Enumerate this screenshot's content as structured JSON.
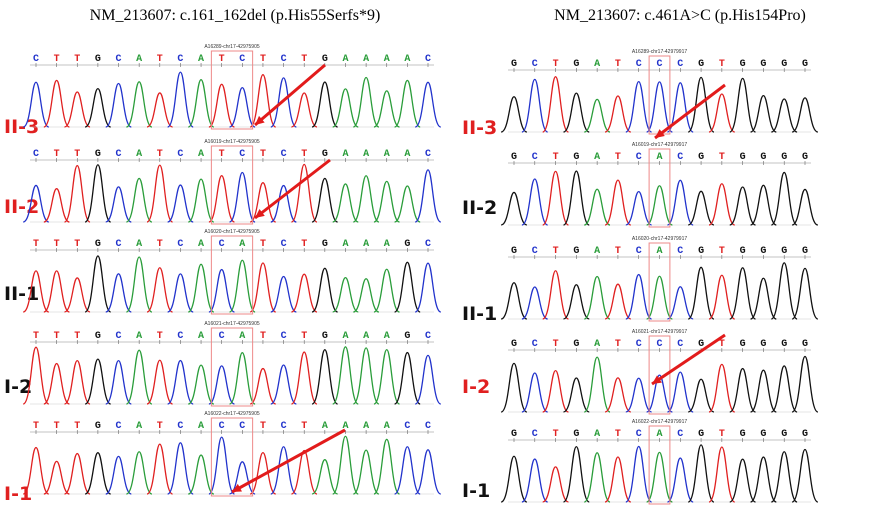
{
  "panels": [
    {
      "title": "NM_213607: c.161_162del (p.His55Serfs*9)",
      "tracks": [
        {
          "label": "II-3",
          "label_color": "#e02020",
          "header": "A16289-chr17-42975905",
          "bases": [
            "C",
            "T",
            "T",
            "G",
            "C",
            "A",
            "T",
            "C",
            "A",
            "T",
            "C",
            "T",
            "C",
            "T",
            "G",
            "A",
            "A",
            "A",
            "A",
            "C"
          ]
        },
        {
          "label": "II-2",
          "label_color": "#e02020",
          "header": "A16019-chr17-42975905",
          "bases": [
            "C",
            "T",
            "T",
            "G",
            "C",
            "A",
            "T",
            "C",
            "A",
            "T",
            "C",
            "T",
            "C",
            "T",
            "G",
            "A",
            "A",
            "A",
            "A",
            "C"
          ]
        },
        {
          "label": "II-1",
          "label_color": "#111111",
          "header": "A16020-chr17-42975905",
          "bases": [
            "T",
            "T",
            "T",
            "G",
            "C",
            "A",
            "T",
            "C",
            "A",
            "C",
            "A",
            "T",
            "C",
            "T",
            "G",
            "A",
            "A",
            "A",
            "G",
            "C"
          ]
        },
        {
          "label": "I-2",
          "label_color": "#111111",
          "header": "A16021-chr17-42975905",
          "bases": [
            "T",
            "T",
            "T",
            "G",
            "C",
            "A",
            "T",
            "C",
            "A",
            "C",
            "A",
            "T",
            "C",
            "T",
            "G",
            "A",
            "A",
            "A",
            "G",
            "C"
          ]
        },
        {
          "label": "I-1",
          "label_color": "#e02020",
          "header": "A16022-chr17-42975905",
          "bases": [
            "T",
            "T",
            "T",
            "G",
            "C",
            "A",
            "T",
            "C",
            "A",
            "C",
            "C",
            "T",
            "C",
            "T",
            "A",
            "A",
            "A",
            "A",
            "C",
            "C"
          ]
        }
      ]
    },
    {
      "title": "NM_213607: c.461A>C (p.His154Pro)",
      "tracks": [
        {
          "label": "II-3",
          "label_color": "#e02020",
          "header": "A16289-chr17-42979917",
          "bases": [
            "G",
            "C",
            "T",
            "G",
            "A",
            "T",
            "C",
            "C",
            "C",
            "G",
            "T",
            "G",
            "G",
            "G",
            "G"
          ]
        },
        {
          "label": "II-2",
          "label_color": "#111111",
          "header": "A16019-chr17-42979917",
          "bases": [
            "G",
            "C",
            "T",
            "G",
            "A",
            "T",
            "C",
            "A",
            "C",
            "G",
            "T",
            "G",
            "G",
            "G",
            "G"
          ]
        },
        {
          "label": "II-1",
          "label_color": "#111111",
          "header": "A16020-chr17-42979917",
          "bases": [
            "G",
            "C",
            "T",
            "G",
            "A",
            "T",
            "C",
            "A",
            "C",
            "G",
            "T",
            "G",
            "G",
            "G",
            "G"
          ]
        },
        {
          "label": "I-2",
          "label_color": "#e02020",
          "header": "A16021-chr17-42979917",
          "bases": [
            "G",
            "C",
            "T",
            "G",
            "A",
            "T",
            "C",
            "C",
            "C",
            "G",
            "T",
            "G",
            "G",
            "G",
            "G"
          ]
        },
        {
          "label": "I-1",
          "label_color": "#111111",
          "header": "A16022-chr17-42979917",
          "bases": [
            "G",
            "C",
            "T",
            "G",
            "A",
            "T",
            "C",
            "A",
            "C",
            "G",
            "T",
            "G",
            "G",
            "G",
            "G"
          ]
        }
      ]
    }
  ]
}
